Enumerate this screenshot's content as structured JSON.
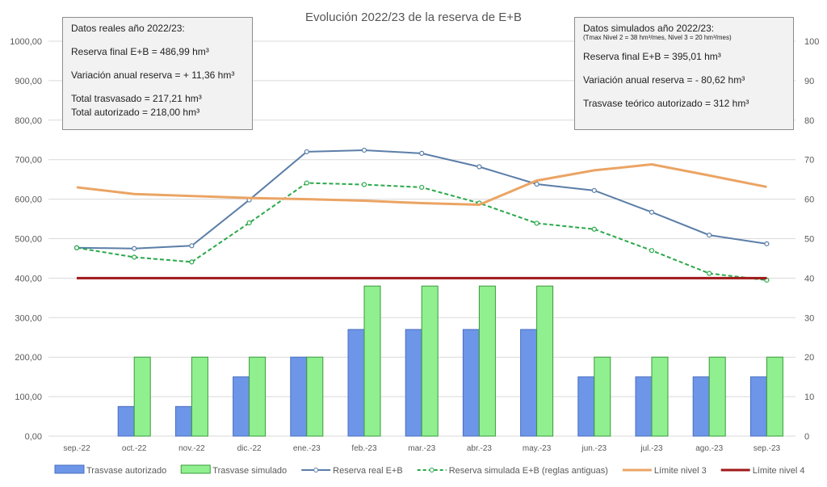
{
  "chart_data": {
    "type": "bar+line",
    "title": "Evolución 2022/23 de la reserva de E+B",
    "categories": [
      "sep.-22",
      "oct.-22",
      "nov.-22",
      "dic.-22",
      "ene.-23",
      "feb.-23",
      "mar.-23",
      "abr.-23",
      "may.-23",
      "jun.-23",
      "jul.-23",
      "ago.-23",
      "sep.-23"
    ],
    "left_axis": {
      "ylim": [
        0,
        1000
      ],
      "ticks": [
        "0,00",
        "100,00",
        "200,00",
        "300,00",
        "400,00",
        "500,00",
        "600,00",
        "700,00",
        "800,00",
        "900,00",
        "1000,00"
      ]
    },
    "right_axis": {
      "ylim": [
        0,
        100
      ],
      "ticks": [
        "0",
        "10",
        "20",
        "30",
        "40",
        "50",
        "60",
        "70",
        "80",
        "90",
        "100"
      ]
    },
    "grid": true,
    "legend_position": "bottom",
    "series": [
      {
        "name": "Trasvase autorizado",
        "type": "bar",
        "axis": "right",
        "color": "#6d95e8",
        "values": [
          0,
          7.5,
          7.5,
          15,
          20,
          27,
          27,
          27,
          27,
          15,
          15,
          15,
          15
        ]
      },
      {
        "name": "Trasvase simulado",
        "type": "bar",
        "axis": "right",
        "color": "#90f090",
        "values": [
          0,
          20,
          20,
          20,
          20,
          38,
          38,
          38,
          38,
          20,
          20,
          20,
          20
        ]
      },
      {
        "name": "Reserva real E+B",
        "type": "line",
        "axis": "left",
        "color": "#5b7ea8",
        "values": [
          477,
          475,
          482,
          598,
          720,
          724,
          716,
          682,
          638,
          622,
          567,
          509,
          487
        ]
      },
      {
        "name": "Reserva simulada E+B (reglas antiguas)",
        "type": "line",
        "axis": "left",
        "color": "#2aa84a",
        "dashed": true,
        "values": [
          477,
          453,
          441,
          540,
          641,
          637,
          630,
          590,
          539,
          524,
          470,
          412,
          395
        ]
      },
      {
        "name": "Límite nivel 3",
        "type": "line",
        "axis": "left",
        "color": "#eba464",
        "values": [
          630,
          613,
          608,
          603,
          600,
          596,
          590,
          586,
          647,
          673,
          688,
          660,
          631
        ]
      },
      {
        "name": "Límite nivel 4",
        "type": "line",
        "axis": "left",
        "color": "#a01818",
        "values": [
          400,
          400,
          400,
          400,
          400,
          400,
          400,
          400,
          400,
          400,
          400,
          400,
          400
        ]
      }
    ],
    "annotations": {
      "real": [
        "Datos reales año 2022/23:",
        "Reserva  final E+B = 486,99 hm³",
        "Variación anual reserva = + 11,36 hm³",
        "Total trasvasado = 217,21 hm³",
        "Total autorizado = 218,00 hm³"
      ],
      "sim": [
        "Datos simulados año 2022/23:",
        "(Tmax Nivel 2 = 38 hm³/mes, Nivel 3 = 20 hm³/mes)",
        "Reserva  final E+B = 395,01 hm³",
        "Variación anual reserva = - 80,62 hm³",
        "Trasvase teórico autorizado = 312 hm³"
      ]
    }
  }
}
